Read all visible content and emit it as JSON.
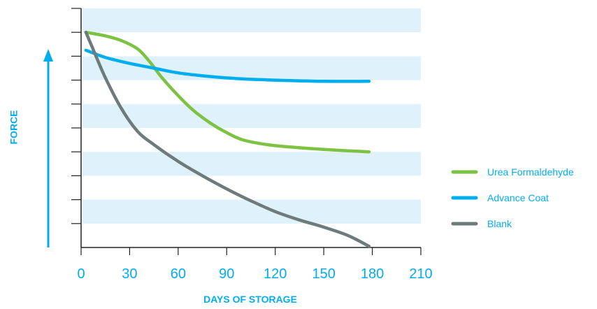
{
  "chart_data": {
    "type": "line",
    "title": "",
    "xlabel": "DAYS OF STORAGE",
    "ylabel": "FORCE",
    "xlim": [
      0,
      210
    ],
    "x_ticks": [
      0,
      30,
      60,
      90,
      120,
      150,
      180,
      210
    ],
    "ylim": [
      0,
      10
    ],
    "y_tick_count": 10,
    "y_values_labeled": false,
    "grid": "alternating horizontal bands",
    "legend_position": "right",
    "series": [
      {
        "name": "Urea Formaldehyde",
        "color": "#7dc242",
        "points": [
          [
            3,
            9.0
          ],
          [
            15,
            8.85
          ],
          [
            25,
            8.65
          ],
          [
            35,
            8.3
          ],
          [
            42,
            7.8
          ],
          [
            50,
            7.1
          ],
          [
            60,
            6.35
          ],
          [
            70,
            5.7
          ],
          [
            80,
            5.2
          ],
          [
            90,
            4.8
          ],
          [
            100,
            4.5
          ],
          [
            115,
            4.3
          ],
          [
            130,
            4.2
          ],
          [
            150,
            4.1
          ],
          [
            178,
            4.0
          ]
        ]
      },
      {
        "name": "Advance Coat",
        "color": "#00aeef",
        "points": [
          [
            3,
            8.25
          ],
          [
            15,
            7.95
          ],
          [
            30,
            7.7
          ],
          [
            45,
            7.5
          ],
          [
            60,
            7.3
          ],
          [
            80,
            7.15
          ],
          [
            100,
            7.05
          ],
          [
            120,
            7.0
          ],
          [
            150,
            6.95
          ],
          [
            178,
            6.95
          ]
        ]
      },
      {
        "name": "Blank",
        "color": "#6e7b7b",
        "points": [
          [
            3,
            9.0
          ],
          [
            8,
            8.2
          ],
          [
            15,
            7.1
          ],
          [
            25,
            5.8
          ],
          [
            35,
            4.85
          ],
          [
            45,
            4.3
          ],
          [
            60,
            3.6
          ],
          [
            75,
            3.0
          ],
          [
            90,
            2.45
          ],
          [
            105,
            1.95
          ],
          [
            120,
            1.5
          ],
          [
            135,
            1.15
          ],
          [
            150,
            0.85
          ],
          [
            165,
            0.5
          ],
          [
            178,
            0.05
          ]
        ]
      }
    ]
  },
  "colors": {
    "accent": "#00aeef",
    "band": "#dff2fb",
    "axis": "#222222"
  }
}
